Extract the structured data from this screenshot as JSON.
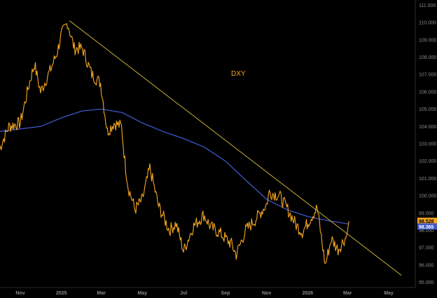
{
  "chart_data": {
    "type": "line",
    "annotation": "DXY",
    "y_ticks": [
      "111.000",
      "110.000",
      "109.000",
      "108.000",
      "107.000",
      "106.000",
      "105.000",
      "104.000",
      "103.000",
      "102.000",
      "101.000",
      "100.000",
      "99.000",
      "98.000",
      "97.000",
      "96.000",
      "95.000"
    ],
    "x_ticks": [
      "Nov",
      "2025",
      "Mar",
      "May",
      "Jul",
      "Sep",
      "Nov",
      "2026",
      "Mar",
      "May"
    ],
    "ylim": [
      94.7,
      111.3
    ],
    "grid": false,
    "price_tag": "98.528",
    "ma_tag": "98.365",
    "colors": {
      "background": "#000000",
      "price": "#f5a623",
      "moving_average": "#3f57c6",
      "trendline": "#d9c23c"
    },
    "series": [
      {
        "type": "line",
        "x": [
          "2024-10-01",
          "2024-10-15",
          "2024-11-01",
          "2024-11-15",
          "2024-11-22",
          "2024-12-01",
          "2024-12-15",
          "2024-12-25",
          "2025-01-01",
          "2025-01-10",
          "2025-01-20",
          "2025-02-01",
          "2025-02-15",
          "2025-02-28",
          "2025-03-10",
          "2025-03-20",
          "2025-03-31",
          "2025-04-05",
          "2025-04-10",
          "2025-04-20",
          "2025-05-01",
          "2025-05-12",
          "2025-05-25",
          "2025-06-10",
          "2025-06-20",
          "2025-07-01",
          "2025-07-15",
          "2025-07-31",
          "2025-08-10",
          "2025-08-25",
          "2025-09-10",
          "2025-09-17",
          "2025-10-01",
          "2025-10-15",
          "2025-11-01",
          "2025-11-05",
          "2025-11-20",
          "2025-12-01",
          "2025-12-15",
          "2025-12-24",
          "2026-01-05",
          "2026-01-15",
          "2026-01-27",
          "2026-02-05",
          "2026-02-15",
          "2026-02-28",
          "2026-03-03"
        ],
        "y": [
          102.7,
          104.0,
          104.2,
          106.6,
          107.6,
          106.0,
          107.2,
          108.2,
          109.3,
          110.0,
          108.5,
          108.5,
          107.0,
          106.5,
          103.7,
          104.2,
          104.0,
          102.0,
          100.5,
          99.2,
          99.8,
          101.6,
          99.4,
          98.0,
          98.4,
          96.8,
          98.2,
          98.9,
          98.2,
          97.8,
          97.2,
          96.6,
          98.0,
          98.6,
          99.5,
          100.2,
          100.0,
          99.3,
          98.3,
          97.9,
          98.7,
          99.3,
          96.0,
          97.5,
          96.9,
          97.7,
          98.53
        ]
      },
      {
        "type": "moving_average",
        "x": [
          "2024-10-01",
          "2024-12-01",
          "2025-01-01",
          "2025-02-01",
          "2025-03-01",
          "2025-04-01",
          "2025-05-01",
          "2025-06-01",
          "2025-07-01",
          "2025-08-01",
          "2025-09-01",
          "2025-10-01",
          "2025-11-01",
          "2025-12-01",
          "2026-01-01",
          "2026-02-01",
          "2026-03-03"
        ],
        "y": [
          103.7,
          104.0,
          104.5,
          104.9,
          105.0,
          104.8,
          104.2,
          103.7,
          103.3,
          102.8,
          102.0,
          100.9,
          99.8,
          99.2,
          98.8,
          98.55,
          98.37
        ]
      },
      {
        "type": "trendline",
        "x": [
          "2025-01-13",
          "2026-05-20"
        ],
        "y": [
          110.1,
          95.4
        ]
      }
    ]
  }
}
